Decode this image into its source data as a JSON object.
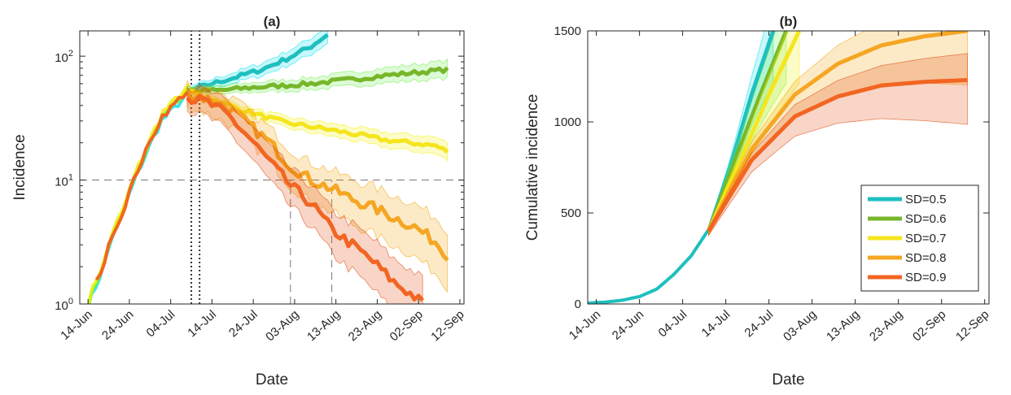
{
  "chart_data": [
    {
      "type": "line",
      "title": "(a)",
      "xlabel": "Date",
      "ylabel": "Incidence",
      "yscale": "log",
      "ylim": [
        1,
        160
      ],
      "xlim": [
        "2020-06-12",
        "2020-09-13"
      ],
      "x_ticks": [
        "14-Jun",
        "24-Jun",
        "04-Jul",
        "14-Jul",
        "24-Jul",
        "03-Aug",
        "13-Aug",
        "23-Aug",
        "02-Sep",
        "12-Sep"
      ],
      "y_ticks": [
        {
          "value": 1,
          "label": "10",
          "exp": "0"
        },
        {
          "value": 10,
          "label": "10",
          "exp": "1"
        },
        {
          "value": 100,
          "label": "10",
          "exp": "2"
        }
      ],
      "grid": false,
      "reference_lines": [
        {
          "axis": "y",
          "value": 10,
          "style": "dashed"
        },
        {
          "axis": "x",
          "value": "2020-08-02",
          "style": "dashed",
          "to_y": 10
        },
        {
          "axis": "x",
          "value": "2020-08-12",
          "style": "dashed",
          "to_y": 10
        },
        {
          "axis": "x",
          "value": "2020-07-09",
          "style": "dotted"
        },
        {
          "axis": "x",
          "value": "2020-07-11",
          "style": "dotted"
        }
      ],
      "common": {
        "name": "Common trajectory",
        "x": [
          "2020-06-14",
          "2020-06-16",
          "2020-06-18",
          "2020-06-20",
          "2020-06-22",
          "2020-06-24",
          "2020-06-26",
          "2020-06-28",
          "2020-06-30",
          "2020-07-02",
          "2020-07-04",
          "2020-07-06",
          "2020-07-08"
        ],
        "y": [
          1.0,
          1.5,
          2.2,
          3.8,
          5.0,
          8.0,
          12,
          17,
          24,
          33,
          38,
          45,
          52
        ]
      },
      "series": [
        {
          "name": "SD=0.5",
          "color": "#1fbfbf",
          "band_color": "#00e0ee",
          "x": [
            "2020-07-08",
            "2020-07-14",
            "2020-07-20",
            "2020-07-26",
            "2020-08-01",
            "2020-08-07",
            "2020-08-11"
          ],
          "y": [
            52,
            60,
            68,
            78,
            95,
            120,
            150
          ]
        },
        {
          "name": "SD=0.6",
          "color": "#77b72b",
          "band_color": "#66ee44",
          "x": [
            "2020-07-08",
            "2020-07-16",
            "2020-07-24",
            "2020-08-01",
            "2020-08-09",
            "2020-08-17",
            "2020-08-25",
            "2020-09-02",
            "2020-09-09"
          ],
          "y": [
            52,
            53,
            56,
            58,
            61,
            65,
            70,
            74,
            78
          ]
        },
        {
          "name": "SD=0.7",
          "color": "#f5e51e",
          "band_color": "#f3f000",
          "x": [
            "2020-07-08",
            "2020-07-14",
            "2020-07-20",
            "2020-07-26",
            "2020-08-01",
            "2020-08-07",
            "2020-08-13",
            "2020-08-19",
            "2020-08-25",
            "2020-08-31",
            "2020-09-06",
            "2020-09-09"
          ],
          "y": [
            52,
            45,
            38,
            33,
            29,
            27,
            25,
            23,
            21,
            20,
            19,
            17
          ]
        },
        {
          "name": "SD=0.8",
          "color": "#f5a623",
          "band_color": "#f3a000",
          "x": [
            "2020-07-08",
            "2020-07-13",
            "2020-07-18",
            "2020-07-23",
            "2020-07-28",
            "2020-08-02",
            "2020-08-07",
            "2020-08-12",
            "2020-08-17",
            "2020-08-22",
            "2020-08-27",
            "2020-09-01",
            "2020-09-06",
            "2020-09-09"
          ],
          "y": [
            50,
            45,
            38,
            28,
            20,
            13,
            10,
            8.5,
            7,
            6,
            5,
            4.2,
            3.2,
            2.5
          ]
        },
        {
          "name": "SD=0.9",
          "color": "#f26522",
          "band_color": "#e04000",
          "x": [
            "2020-07-08",
            "2020-07-13",
            "2020-07-18",
            "2020-07-23",
            "2020-07-28",
            "2020-08-02",
            "2020-08-07",
            "2020-08-12",
            "2020-08-17",
            "2020-08-22",
            "2020-08-27",
            "2020-09-01",
            "2020-09-03"
          ],
          "y": [
            47,
            42,
            33,
            22,
            14,
            9,
            6.5,
            4,
            3,
            2.2,
            1.5,
            1.15,
            1.0
          ]
        }
      ]
    },
    {
      "type": "line",
      "title": "(b)",
      "xlabel": "Date",
      "ylabel": "Cumulative incidence",
      "ylim": [
        0,
        1500
      ],
      "xlim": [
        "2020-06-12",
        "2020-09-13"
      ],
      "x_ticks": [
        "14-Jun",
        "24-Jun",
        "04-Jul",
        "14-Jul",
        "24-Jul",
        "03-Aug",
        "13-Aug",
        "23-Aug",
        "02-Sep",
        "12-Sep"
      ],
      "y_ticks": [
        0,
        500,
        1000,
        1500
      ],
      "grid": false,
      "legend": {
        "position": "lower-right"
      },
      "common": {
        "name": "Common trajectory",
        "x": [
          "2020-06-12",
          "2020-06-16",
          "2020-06-20",
          "2020-06-24",
          "2020-06-28",
          "2020-07-02",
          "2020-07-06",
          "2020-07-10"
        ],
        "y": [
          5,
          10,
          20,
          40,
          80,
          160,
          260,
          400
        ]
      },
      "series": [
        {
          "name": "SD=0.5",
          "color": "#1fbfbf",
          "band_color": "#00e0ee",
          "x": [
            "2020-07-10",
            "2020-07-15",
            "2020-07-20",
            "2020-07-25"
          ],
          "y": [
            400,
            750,
            1150,
            1500
          ]
        },
        {
          "name": "SD=0.6",
          "color": "#77b72b",
          "band_color": "#66ee44",
          "x": [
            "2020-07-10",
            "2020-07-16",
            "2020-07-22",
            "2020-07-28"
          ],
          "y": [
            400,
            780,
            1150,
            1500
          ]
        },
        {
          "name": "SD=0.7",
          "color": "#f5e51e",
          "band_color": "#f3f000",
          "x": [
            "2020-07-10",
            "2020-07-17",
            "2020-07-24",
            "2020-07-31"
          ],
          "y": [
            400,
            770,
            1150,
            1500
          ]
        },
        {
          "name": "SD=0.8",
          "color": "#f5a623",
          "band_color": "#f3a000",
          "x": [
            "2020-07-10",
            "2020-07-20",
            "2020-07-30",
            "2020-08-09",
            "2020-08-19",
            "2020-08-29",
            "2020-09-08"
          ],
          "y": [
            400,
            850,
            1150,
            1320,
            1420,
            1470,
            1500
          ]
        },
        {
          "name": "SD=0.9",
          "color": "#f26522",
          "band_color": "#e04000",
          "x": [
            "2020-07-10",
            "2020-07-20",
            "2020-07-30",
            "2020-08-09",
            "2020-08-19",
            "2020-08-29",
            "2020-09-08"
          ],
          "y": [
            400,
            790,
            1030,
            1140,
            1200,
            1220,
            1230
          ]
        }
      ]
    }
  ]
}
